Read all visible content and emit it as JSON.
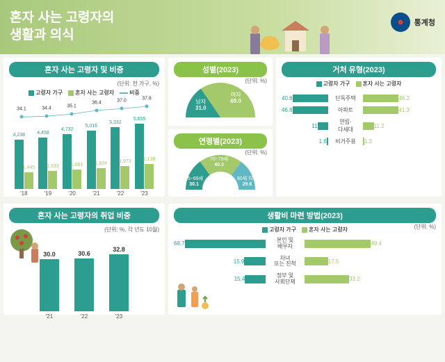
{
  "header": {
    "title_l1": "혼자 사는 고령자의",
    "title_l2": "생활과 의식",
    "org": "통계청"
  },
  "colors": {
    "teal": "#2d9d8f",
    "green": "#a4c96b",
    "lime": "#8bc34a",
    "blue": "#5fb8c4",
    "darkteal": "#1e7d72",
    "orange": "#f0a050"
  },
  "c1": {
    "title": "혼자 사는 고령자 및 비중",
    "unit": "(단위: 천 가구, %)",
    "legend": [
      "고령자 가구",
      "혼자 사는 고령자",
      "비중"
    ],
    "years": [
      "'18",
      "'19",
      "'20",
      "'21",
      "'22",
      "'23"
    ],
    "households": [
      4238,
      4458,
      4732,
      5016,
      5332,
      5655
    ],
    "alone": [
      1445,
      1533,
      1661,
      1824,
      1973,
      2138
    ],
    "ratio": [
      34.1,
      34.4,
      35.1,
      36.4,
      37.0,
      37.8
    ],
    "bar_max": 6000,
    "ratio_min": 33,
    "ratio_max": 39
  },
  "c2": {
    "title": "성별(2023)",
    "unit": "(단위: %)",
    "male": {
      "label": "남자",
      "val": 31.0
    },
    "female": {
      "label": "여자",
      "val": 69.0
    }
  },
  "c3": {
    "title": "연령별(2023)",
    "unit": "(단위: %)",
    "seg": [
      {
        "label": "65~69세",
        "val": 30.1,
        "color": "#2d9d8f"
      },
      {
        "label": "70~79세",
        "val": 40.3,
        "color": "#a4c96b"
      },
      {
        "label": "80세 이상",
        "val": 29.6,
        "color": "#5fb8c4"
      }
    ]
  },
  "c4": {
    "title": "거처 유형(2023)",
    "legend": [
      "고령자 가구",
      "혼자 사는 고령자"
    ],
    "rows": [
      {
        "label": "단독주택",
        "l": 40.6,
        "r": 46.2
      },
      {
        "label": "아파트",
        "l": 46.8,
        "r": 41.3
      },
      {
        "label": "연립·\n다세대",
        "l": 11.0,
        "r": 11.2
      },
      {
        "label": "비거주용",
        "l": 1.6,
        "r": 1.3
      }
    ],
    "max": 50
  },
  "c5": {
    "title": "혼자 사는 고령자의 취업 비중",
    "unit": "(단위: %, 각 년도 10월)",
    "years": [
      "'21",
      "'22",
      "'23"
    ],
    "vals": [
      30.0,
      30.6,
      32.8
    ],
    "max": 40
  },
  "c6": {
    "title": "생활비 마련 방법(2023)",
    "unit": "(단위: %)",
    "legend": [
      "고령자 가구",
      "혼자 사는 고령자"
    ],
    "rows": [
      {
        "label": "본인 및\n배우자",
        "l": 68.7,
        "r": 49.4
      },
      {
        "label": "자녀\n또는 친척",
        "l": 15.9,
        "r": 17.5
      },
      {
        "label": "정부 및\n사회단체",
        "l": 15.4,
        "r": 33.2
      }
    ],
    "max": 70
  }
}
